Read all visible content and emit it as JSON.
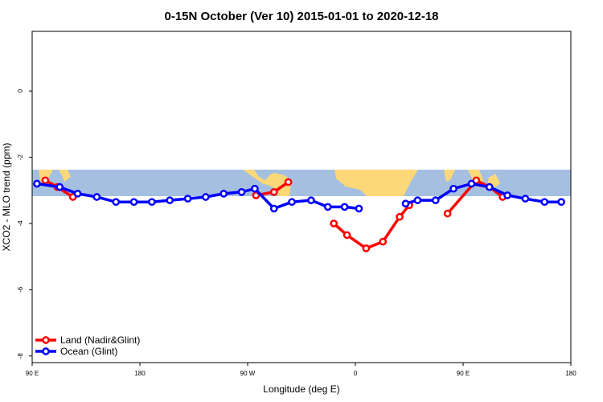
{
  "chart_data": {
    "type": "line",
    "title": "0-15N October (Ver 10)   2015-01-01 to 2020-12-18",
    "xlabel": "Longitude (deg E)",
    "ylabel": "XCO2 - MLO trend (ppm)",
    "xlim": [
      90,
      540
    ],
    "ylim": [
      -8.2,
      1.8
    ],
    "xticks": [
      {
        "value": 90,
        "label": "90 E"
      },
      {
        "value": 180,
        "label": "180"
      },
      {
        "value": 270,
        "label": "90 W"
      },
      {
        "value": 360,
        "label": "0"
      },
      {
        "value": 450,
        "label": "90 E"
      },
      {
        "value": 540,
        "label": "180"
      }
    ],
    "yticks": [
      {
        "value": 0,
        "label": "0"
      },
      {
        "value": -2,
        "label": "-2"
      },
      {
        "value": -4,
        "label": "-4"
      },
      {
        "value": -6,
        "label": "-6"
      },
      {
        "value": -8,
        "label": "-8"
      }
    ],
    "map_band": {
      "lat_min": 0,
      "lat_max": 15,
      "y_top": -2.45,
      "y_bottom": -3.25,
      "ocean_color": "#a5bfe0",
      "land_color": "#fcd878"
    },
    "series": [
      {
        "name": "Land (Nadir&Glint)",
        "color": "#ff0000",
        "segments": [
          [
            [
              101,
              -2.7
            ],
            [
              111,
              -2.9
            ],
            [
              124,
              -3.2
            ]
          ],
          [
            [
              277,
              -3.15
            ],
            [
              292,
              -3.05
            ],
            [
              304,
              -2.75
            ]
          ],
          [
            [
              342,
              -4.0
            ],
            [
              353,
              -4.35
            ],
            [
              369,
              -4.75
            ],
            [
              383,
              -4.55
            ],
            [
              397,
              -3.8
            ],
            [
              405,
              -3.45
            ]
          ],
          [
            [
              437,
              -3.7
            ],
            [
              461,
              -2.7
            ],
            [
              472,
              -2.9
            ],
            [
              483,
              -3.2
            ]
          ]
        ]
      },
      {
        "name": "Ocean (Glint)",
        "color": "#0000ff",
        "segments": [
          [
            [
              94,
              -2.8
            ],
            [
              113,
              -2.9
            ],
            [
              128,
              -3.1
            ],
            [
              144,
              -3.2
            ],
            [
              160,
              -3.35
            ],
            [
              175,
              -3.35
            ],
            [
              190,
              -3.35
            ],
            [
              205,
              -3.3
            ],
            [
              220,
              -3.25
            ],
            [
              235,
              -3.2
            ],
            [
              250,
              -3.1
            ],
            [
              265,
              -3.05
            ],
            [
              276,
              -2.95
            ],
            [
              292,
              -3.55
            ],
            [
              307,
              -3.35
            ],
            [
              323,
              -3.3
            ],
            [
              337,
              -3.5
            ],
            [
              351,
              -3.5
            ],
            [
              363,
              -3.55
            ]
          ],
          [
            [
              402,
              -3.4
            ],
            [
              412,
              -3.3
            ],
            [
              427,
              -3.3
            ],
            [
              442,
              -2.95
            ],
            [
              457,
              -2.8
            ],
            [
              472,
              -2.9
            ],
            [
              487,
              -3.15
            ],
            [
              502,
              -3.25
            ],
            [
              518,
              -3.35
            ],
            [
              532,
              -3.35
            ]
          ]
        ]
      }
    ],
    "legend": {
      "position": "bottom-left"
    },
    "grid": false
  }
}
